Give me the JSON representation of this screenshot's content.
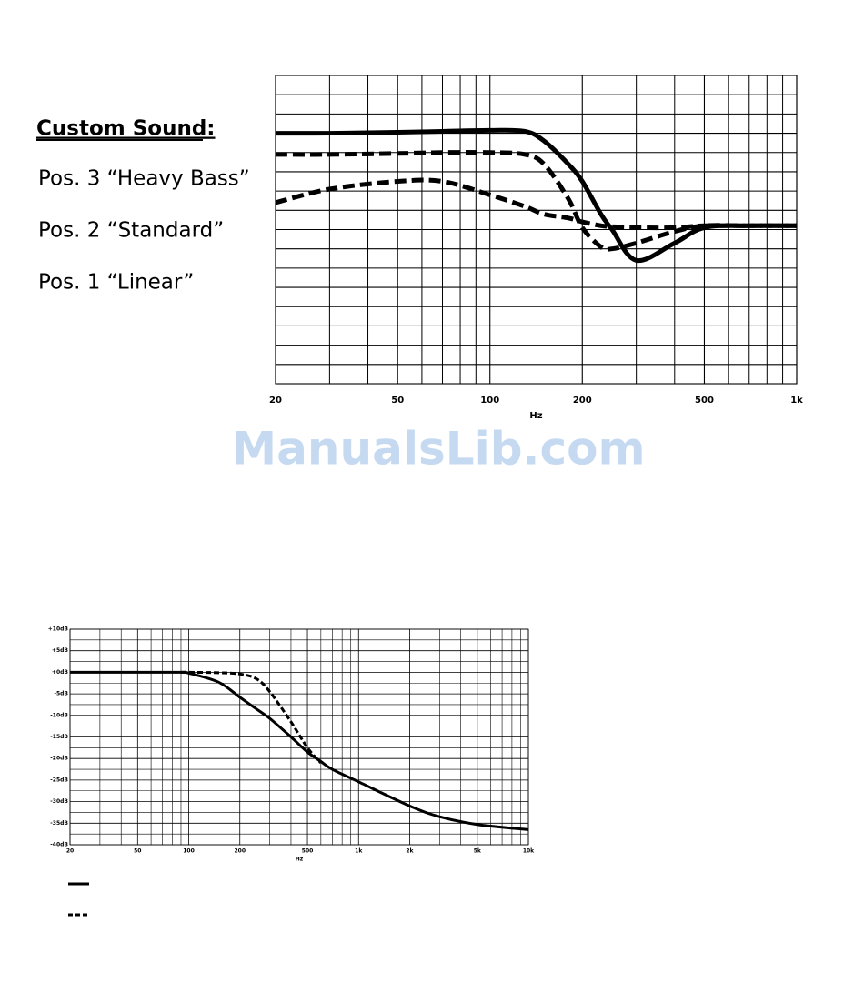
{
  "heading": "Custom Sound:",
  "positions": [
    "Pos. 3 “Heavy Bass”",
    "Pos. 2 “Standard”",
    "Pos. 1 “Linear”"
  ],
  "watermark": "ManualsLib.com",
  "chart_data": [
    {
      "type": "line",
      "x_label": "Hz",
      "log_x": true,
      "grid": true,
      "xlim": [
        20,
        1000
      ],
      "xticks": [
        20,
        50,
        100,
        200,
        500,
        {
          "value": 1000,
          "label": "1k"
        }
      ],
      "xgrid": [
        30,
        40,
        60,
        70,
        80,
        90,
        300,
        400,
        600,
        700,
        800,
        900
      ],
      "ylim": [
        0,
        16
      ],
      "yticks": [
        0,
        1,
        2,
        3,
        4,
        5,
        6,
        7,
        8,
        9,
        10,
        11,
        12,
        13,
        14,
        15,
        16
      ],
      "x": [
        20,
        30,
        50,
        70,
        100,
        130,
        150,
        180,
        200,
        230,
        250,
        300,
        400,
        500,
        700,
        1000
      ],
      "series": [
        {
          "color": "#000000",
          "dash": "solid",
          "values": [
            13.0,
            13.0,
            13.05,
            13.1,
            13.15,
            13.1,
            12.6,
            11.4,
            10.5,
            8.8,
            8.0,
            6.4,
            7.3,
            8.1,
            8.2,
            8.2
          ]
        },
        {
          "color": "#000000",
          "dash": "dashed",
          "values": [
            11.9,
            11.9,
            11.95,
            12.0,
            12.0,
            11.9,
            11.4,
            9.6,
            8.1,
            7.1,
            7.0,
            7.3,
            7.9,
            8.2,
            8.2,
            8.2
          ]
        },
        {
          "color": "#000000",
          "dash": "dashed",
          "values": [
            9.4,
            10.1,
            10.5,
            10.5,
            9.8,
            9.2,
            8.8,
            8.6,
            8.4,
            8.2,
            8.15,
            8.1,
            8.1,
            8.2,
            8.2,
            8.2
          ]
        }
      ]
    },
    {
      "type": "line",
      "x_label": "Hz",
      "log_x": true,
      "grid": true,
      "xlim": [
        20,
        10000
      ],
      "xticks": [
        20,
        50,
        100,
        200,
        500,
        {
          "value": 1000,
          "label": "1k"
        },
        {
          "value": 2000,
          "label": "2k"
        },
        {
          "value": 5000,
          "label": "5k"
        },
        {
          "value": 10000,
          "label": "10k"
        }
      ],
      "xgrid": [
        30,
        40,
        60,
        70,
        80,
        90,
        300,
        400,
        600,
        700,
        800,
        900,
        3000,
        4000,
        6000,
        7000,
        8000,
        9000
      ],
      "ylim": [
        -40,
        10
      ],
      "yticks": [
        {
          "value": 10,
          "label": "+10dB"
        },
        {
          "value": 5,
          "label": "+5dB"
        },
        {
          "value": 0,
          "label": "+0dB"
        },
        {
          "value": -5,
          "label": "-5dB"
        },
        {
          "value": -10,
          "label": "-10dB"
        },
        {
          "value": -15,
          "label": "-15dB"
        },
        {
          "value": -20,
          "label": "-20dB"
        },
        {
          "value": -25,
          "label": "-25dB"
        },
        {
          "value": -30,
          "label": "-30dB"
        },
        {
          "value": -35,
          "label": "-35dB"
        },
        {
          "value": -40,
          "label": "-40dB"
        }
      ],
      "ygrid": [
        7.5,
        2.5,
        -2.5,
        -7.5,
        -12.5,
        -17.5,
        -22.5,
        -27.5,
        -32.5,
        -37.5
      ],
      "x": [
        20,
        50,
        90,
        100,
        150,
        200,
        250,
        300,
        400,
        500,
        600,
        700,
        1000,
        2000,
        3000,
        5000,
        10000
      ],
      "series": [
        {
          "color": "#000000",
          "dash": "solid",
          "values": [
            0,
            0,
            0,
            -0.2,
            -2.3,
            -5.8,
            -8.5,
            -10.7,
            -15,
            -18.5,
            -20.7,
            -22.5,
            -25.4,
            -31,
            -33.5,
            -35.3,
            -36.5
          ]
        },
        {
          "color": "#000000",
          "dash": "dashed",
          "values": [
            null,
            null,
            0,
            0,
            -0.1,
            -0.4,
            -1.5,
            -4.5,
            -11.5,
            -17.5,
            -21,
            null,
            null,
            null,
            null,
            null,
            null
          ]
        }
      ]
    }
  ]
}
